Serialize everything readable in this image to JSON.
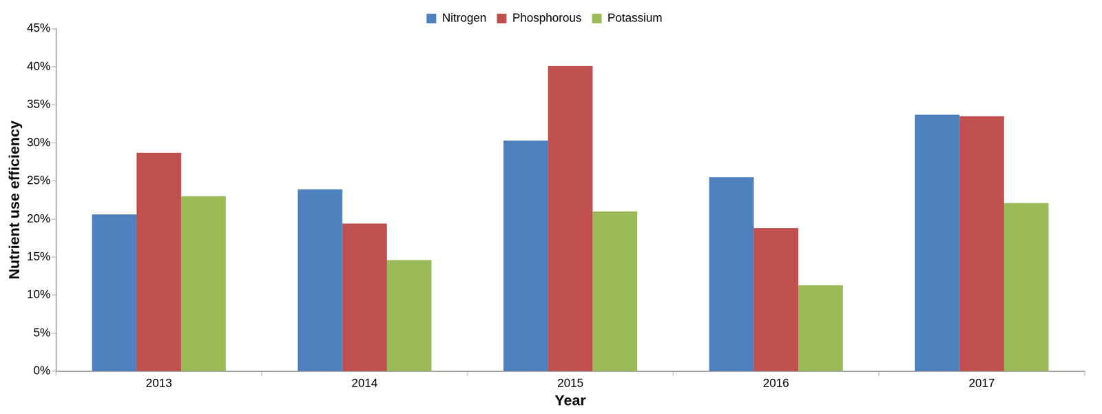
{
  "chart_data": {
    "type": "bar",
    "x_label": "Year",
    "y_label": "Nutrient use efficiency",
    "categories": [
      "2013",
      "2014",
      "2015",
      "2016",
      "2017"
    ],
    "series": [
      {
        "name": "Nitrogen",
        "color": "#4f81bd",
        "values": [
          20.6,
          23.9,
          30.3,
          25.5,
          33.7
        ]
      },
      {
        "name": "Phosphorous",
        "color": "#c0504d",
        "values": [
          28.7,
          19.4,
          40.1,
          18.8,
          33.5
        ]
      },
      {
        "name": "Potassium",
        "color": "#9bbb59",
        "values": [
          23.0,
          14.6,
          21.0,
          11.3,
          22.1
        ]
      }
    ],
    "ylim": [
      0,
      45
    ],
    "yticks": [
      {
        "value": 0,
        "label": "0%"
      },
      {
        "value": 5,
        "label": "5%"
      },
      {
        "value": 10,
        "label": "10%"
      },
      {
        "value": 15,
        "label": "15%"
      },
      {
        "value": 20,
        "label": "20%"
      },
      {
        "value": 25,
        "label": "25%"
      },
      {
        "value": 30,
        "label": "30%"
      },
      {
        "value": 35,
        "label": "35%"
      },
      {
        "value": 40,
        "label": "40%"
      },
      {
        "value": 45,
        "label": "45%"
      }
    ],
    "grid": false,
    "legend": "top"
  }
}
